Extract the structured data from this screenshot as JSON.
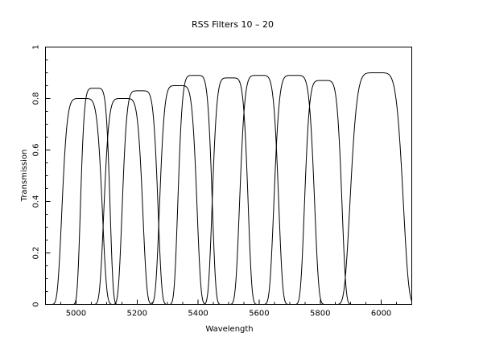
{
  "chart_data": {
    "type": "line",
    "title": "RSS Filters 10 – 20",
    "xlabel": "Wavelength",
    "ylabel": "Transmission",
    "xlim": [
      4900,
      6100
    ],
    "ylim": [
      0,
      1
    ],
    "x_ticks": [
      5000,
      5200,
      5400,
      5600,
      5800,
      6000
    ],
    "x_tick_labels": [
      "5000",
      "5200",
      "5400",
      "5600",
      "5800",
      "6000"
    ],
    "y_ticks": [
      0,
      0.2,
      0.4,
      0.6,
      0.8,
      1
    ],
    "y_tick_labels": [
      "0",
      "0.2",
      "0.4",
      "0.6",
      "0.8",
      "1"
    ],
    "grid": false,
    "legend": "none",
    "series": [
      {
        "center": 5020,
        "fwhm": 130,
        "peak": 0.8
      },
      {
        "center": 5063,
        "fwhm": 95,
        "peak": 0.84
      },
      {
        "center": 5155,
        "fwhm": 125,
        "peak": 0.8
      },
      {
        "center": 5210,
        "fwhm": 115,
        "peak": 0.83
      },
      {
        "center": 5335,
        "fwhm": 120,
        "peak": 0.85
      },
      {
        "center": 5390,
        "fwhm": 110,
        "peak": 0.89
      },
      {
        "center": 5505,
        "fwhm": 115,
        "peak": 0.88
      },
      {
        "center": 5600,
        "fwhm": 125,
        "peak": 0.89
      },
      {
        "center": 5715,
        "fwhm": 130,
        "peak": 0.89
      },
      {
        "center": 5810,
        "fwhm": 120,
        "peak": 0.87
      },
      {
        "center": 5985,
        "fwhm": 170,
        "peak": 0.9
      }
    ]
  }
}
